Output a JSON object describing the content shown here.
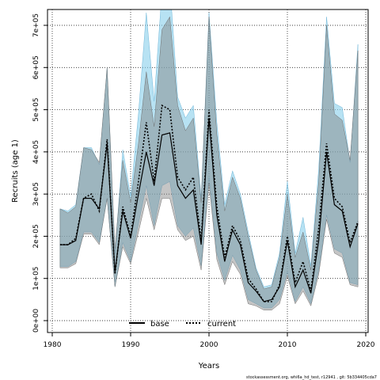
{
  "chart_data": {
    "type": "line",
    "title": "",
    "xlabel": "Years",
    "ylabel": "Recruits (age 1)",
    "xlim": [
      1980,
      2020
    ],
    "ylim": [
      0,
      720000
    ],
    "x_ticks": [
      1980,
      1990,
      2000,
      2010,
      2020
    ],
    "x_tick_labels": [
      "1980",
      "1990",
      "2000",
      "2010",
      "2020"
    ],
    "y_ticks": [
      0,
      100000,
      200000,
      300000,
      400000,
      500000,
      600000,
      700000
    ],
    "y_tick_labels": [
      "0e+00",
      "1e+05",
      "2e+05",
      "3e+05",
      "4e+05",
      "5e+05",
      "6e+05",
      "7e+05"
    ],
    "grid": true,
    "legend_position": "bottom-center",
    "x": [
      1981,
      1982,
      1983,
      1984,
      1985,
      1986,
      1987,
      1988,
      1989,
      1990,
      1991,
      1992,
      1993,
      1994,
      1995,
      1996,
      1997,
      1998,
      1999,
      2000,
      2001,
      2002,
      2003,
      2004,
      2005,
      2006,
      2007,
      2008,
      2009,
      2010,
      2011,
      2012,
      2013,
      2014,
      2015,
      2016,
      2017,
      2018,
      2019
    ],
    "series": [
      {
        "name": "base",
        "line_style": "solid",
        "line_color": "#000000",
        "band_color": "#7f7f7f",
        "values": [
          180000,
          180000,
          190000,
          290000,
          290000,
          265000,
          420000,
          115000,
          260000,
          195000,
          300000,
          400000,
          320000,
          440000,
          445000,
          320000,
          290000,
          310000,
          180000,
          480000,
          250000,
          140000,
          215000,
          180000,
          90000,
          70000,
          45000,
          50000,
          80000,
          190000,
          80000,
          120000,
          65000,
          190000,
          400000,
          275000,
          260000,
          175000,
          230000
        ],
        "lower": [
          125000,
          125000,
          135000,
          205000,
          205000,
          180000,
          290000,
          80000,
          175000,
          135000,
          210000,
          290000,
          215000,
          290000,
          290000,
          215000,
          190000,
          200000,
          120000,
          325000,
          145000,
          85000,
          140000,
          110000,
          40000,
          35000,
          25000,
          25000,
          40000,
          105000,
          40000,
          70000,
          35000,
          110000,
          240000,
          160000,
          150000,
          85000,
          80000
        ],
        "upper": [
          265000,
          255000,
          270000,
          410000,
          405000,
          375000,
          600000,
          170000,
          380000,
          280000,
          420000,
          590000,
          460000,
          690000,
          720000,
          510000,
          450000,
          480000,
          280000,
          720000,
          440000,
          260000,
          340000,
          290000,
          200000,
          120000,
          75000,
          80000,
          150000,
          300000,
          150000,
          210000,
          120000,
          330000,
          700000,
          490000,
          475000,
          380000,
          640000
        ]
      },
      {
        "name": "current",
        "line_style": "dotted",
        "line_color": "#000000",
        "band_color": "#87ceeb",
        "values": [
          180000,
          180000,
          195000,
          290000,
          300000,
          260000,
          430000,
          110000,
          270000,
          200000,
          330000,
          470000,
          330000,
          510000,
          500000,
          340000,
          310000,
          340000,
          190000,
          500000,
          270000,
          150000,
          225000,
          190000,
          100000,
          75000,
          45000,
          45000,
          85000,
          200000,
          90000,
          140000,
          70000,
          220000,
          420000,
          290000,
          270000,
          185000,
          235000
        ],
        "lower": [
          128000,
          128000,
          140000,
          210000,
          210000,
          185000,
          290000,
          80000,
          185000,
          140000,
          230000,
          320000,
          225000,
          320000,
          330000,
          225000,
          200000,
          220000,
          130000,
          340000,
          160000,
          95000,
          155000,
          120000,
          50000,
          40000,
          30000,
          30000,
          50000,
          115000,
          45000,
          80000,
          40000,
          120000,
          250000,
          170000,
          160000,
          90000,
          85000
        ],
        "upper": [
          265000,
          260000,
          275000,
          410000,
          410000,
          370000,
          600000,
          160000,
          405000,
          295000,
          490000,
          730000,
          520000,
          780000,
          800000,
          530000,
          480000,
          510000,
          290000,
          730000,
          470000,
          275000,
          355000,
          300000,
          210000,
          125000,
          80000,
          85000,
          160000,
          330000,
          160000,
          245000,
          130000,
          360000,
          720000,
          515000,
          505000,
          375000,
          655000
        ]
      }
    ],
    "footer": "stockassessment.org, whi6a_hd_test, r12941 , git: 5b334405cda7"
  }
}
